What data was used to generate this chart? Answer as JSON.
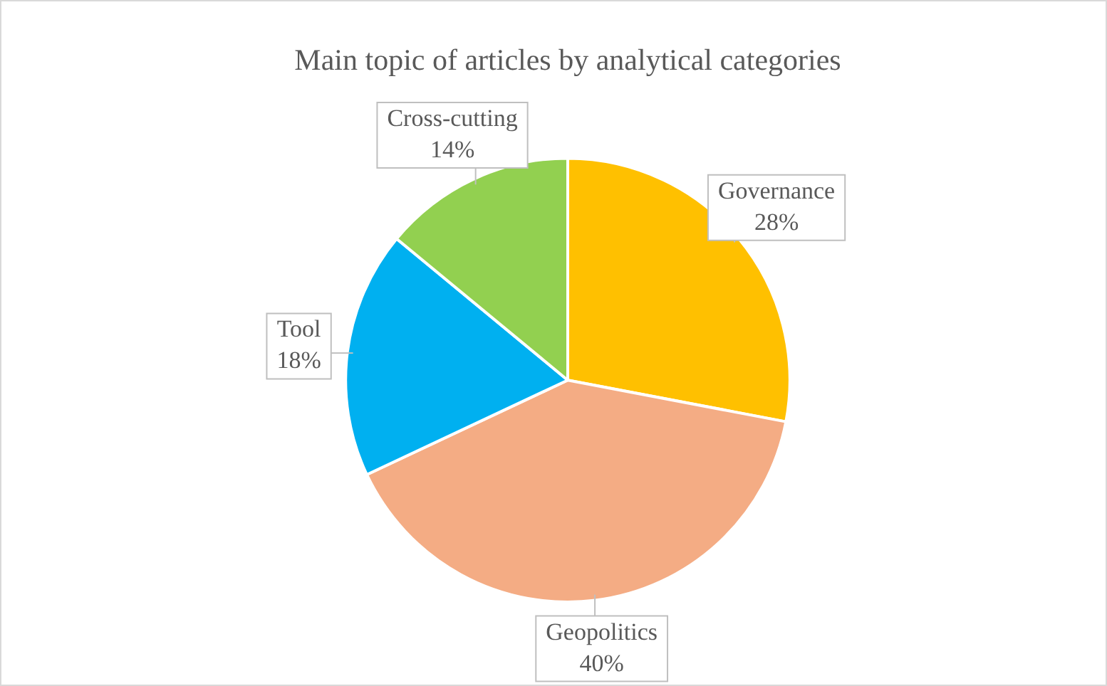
{
  "chart_data": {
    "type": "pie",
    "title": "Main topic of articles by analytical categories",
    "categories": [
      "Governance",
      "Geopolitics",
      "Tool",
      "Cross-cutting"
    ],
    "values": [
      28,
      40,
      18,
      14
    ],
    "colors": [
      "#ffc000",
      "#f4ac84",
      "#00b0f0",
      "#92d050"
    ],
    "value_labels": [
      "28%",
      "40%",
      "18%",
      "14%"
    ],
    "legend": false
  }
}
